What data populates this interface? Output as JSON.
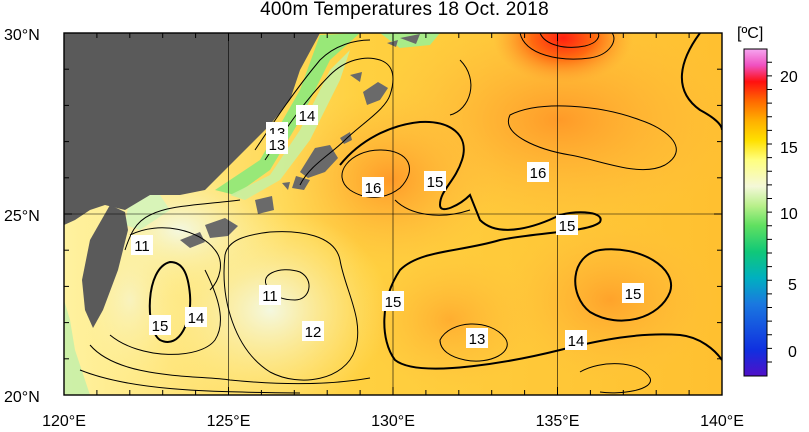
{
  "title": "400m Temperatures  18 Oct. 2018",
  "unit_label": "[ºC]",
  "lat_labels": [
    "30°N",
    "25°N",
    "20°N"
  ],
  "lon_labels": [
    "120°E",
    "125°E",
    "130°E",
    "135°E",
    "140°E"
  ],
  "colorbar": {
    "ticks": [
      "20",
      "15",
      "10",
      "5",
      "0"
    ],
    "colors": [
      "#f6a6f0",
      "#ff1010",
      "#ff6a00",
      "#ffb000",
      "#ffe000",
      "#ffff80",
      "#f4f8d8",
      "#b8f08a",
      "#60e060",
      "#10c878",
      "#00b0c0",
      "#1a78e0",
      "#1030e0",
      "#5010c8"
    ]
  },
  "contour_labels": [
    {
      "text": "14"
    },
    {
      "text": "13"
    },
    {
      "text": "13"
    },
    {
      "text": "15"
    },
    {
      "text": "16"
    },
    {
      "text": "16"
    },
    {
      "text": "15"
    },
    {
      "text": "11"
    },
    {
      "text": "11"
    },
    {
      "text": "15"
    },
    {
      "text": "15"
    },
    {
      "text": "14"
    },
    {
      "text": "12"
    },
    {
      "text": "13"
    },
    {
      "text": "14"
    },
    {
      "text": "15"
    }
  ],
  "map_colors": {
    "land": "#5a5a5a",
    "warm": "#ffa030",
    "hot": "#ff3010",
    "mid": "#ffe030",
    "cool": "#f8f8c8",
    "green": "#90e870"
  }
}
